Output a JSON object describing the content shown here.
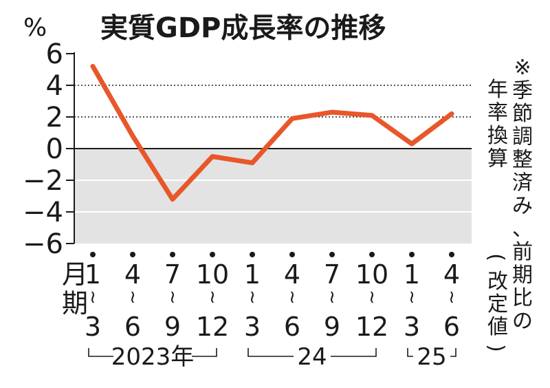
{
  "chart_data": {
    "type": "line",
    "title": "実質GDP成長率の推移",
    "ylabel": "%",
    "ylim": [
      -6,
      6
    ],
    "yticks": [
      "6",
      "4",
      "2",
      "0",
      "−2",
      "−4",
      "−6"
    ],
    "month_axis_label": "月期",
    "note": "※季節調整済み、前期比の年率換算",
    "revised_note": "(改定値)",
    "negative_region_shaded": true,
    "dotted_gridlines_at": [
      2,
      4
    ],
    "categories": [
      "1~3",
      "4~6",
      "7~9",
      "10~12",
      "1~3",
      "4~6",
      "7~9",
      "10~12",
      "1~3",
      "4~6"
    ],
    "quarters": [
      {
        "start": "1",
        "end": "3"
      },
      {
        "start": "4",
        "end": "6"
      },
      {
        "start": "7",
        "end": "9"
      },
      {
        "start": "10",
        "end": "12"
      },
      {
        "start": "1",
        "end": "3"
      },
      {
        "start": "4",
        "end": "6"
      },
      {
        "start": "7",
        "end": "9"
      },
      {
        "start": "10",
        "end": "12"
      },
      {
        "start": "1",
        "end": "3"
      },
      {
        "start": "4",
        "end": "6"
      }
    ],
    "years": [
      {
        "label": "2023年",
        "from": 0,
        "to": 3
      },
      {
        "label": "24",
        "from": 4,
        "to": 7
      },
      {
        "label": "25",
        "from": 8,
        "to": 9
      }
    ],
    "series": [
      {
        "values": [
          5.2,
          0.8,
          -3.2,
          -0.5,
          -0.9,
          1.9,
          2.3,
          2.1,
          0.3,
          2.2
        ]
      }
    ],
    "colors": {
      "line": "#e8572a",
      "negative_band": "#e3e3e3",
      "axis": "#1a1a1a"
    }
  }
}
